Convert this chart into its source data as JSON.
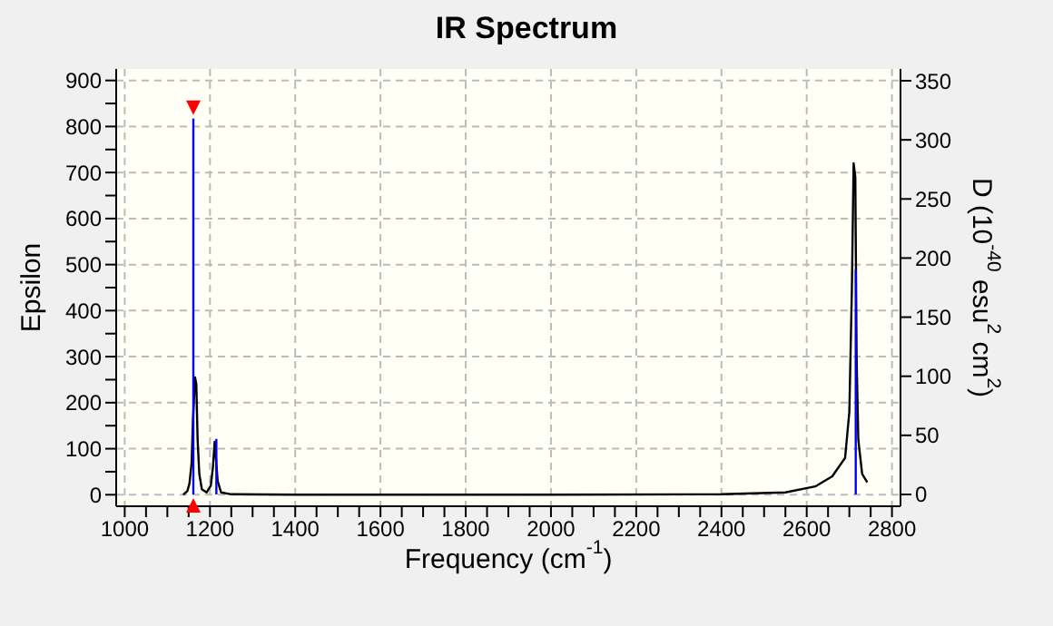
{
  "chart_data": {
    "type": "line",
    "title": "IR Spectrum",
    "xlabel": "Frequency (cm$^{-1}$)",
    "ylabel": "Epsilon",
    "y2label": "D (10$^{-40}$ esu$^{2}$ cm$^{2}$)",
    "xlim": [
      980,
      2820
    ],
    "xticks": [
      1000,
      {
        "value": 1050,
        "label": null
      },
      {
        "value": 1100,
        "label": null
      },
      {
        "value": 1150,
        "label": null
      },
      1200,
      {
        "value": 1250,
        "label": null
      },
      {
        "value": 1300,
        "label": null
      },
      {
        "value": 1350,
        "label": null
      },
      1400,
      {
        "value": 1450,
        "label": null
      },
      {
        "value": 1500,
        "label": null
      },
      {
        "value": 1550,
        "label": null
      },
      1600,
      {
        "value": 1650,
        "label": null
      },
      {
        "value": 1700,
        "label": null
      },
      {
        "value": 1750,
        "label": null
      },
      1800,
      {
        "value": 1850,
        "label": null
      },
      {
        "value": 1900,
        "label": null
      },
      {
        "value": 1950,
        "label": null
      },
      2000,
      {
        "value": 2050,
        "label": null
      },
      {
        "value": 2100,
        "label": null
      },
      {
        "value": 2150,
        "label": null
      },
      2200,
      {
        "value": 2250,
        "label": null
      },
      {
        "value": 2300,
        "label": null
      },
      {
        "value": 2350,
        "label": null
      },
      2400,
      {
        "value": 2450,
        "label": null
      },
      {
        "value": 2500,
        "label": null
      },
      {
        "value": 2550,
        "label": null
      },
      2600,
      {
        "value": 2650,
        "label": null
      },
      {
        "value": 2700,
        "label": null
      },
      {
        "value": 2750,
        "label": null
      },
      2800
    ],
    "ylim": [
      -25,
      925
    ],
    "yticks": [
      0,
      {
        "value": 50,
        "label": null
      },
      100,
      {
        "value": 150,
        "label": null
      },
      200,
      {
        "value": 250,
        "label": null
      },
      300,
      {
        "value": 350,
        "label": null
      },
      400,
      {
        "value": 450,
        "label": null
      },
      500,
      {
        "value": 550,
        "label": null
      },
      600,
      {
        "value": 650,
        "label": null
      },
      700,
      {
        "value": 750,
        "label": null
      },
      800,
      {
        "value": 850,
        "label": null
      },
      900
    ],
    "y2lim": [
      -10,
      360
    ],
    "y2ticks": [
      0,
      50,
      100,
      150,
      200,
      250,
      300,
      350
    ],
    "grid": true,
    "series": [
      {
        "color": "#000000",
        "x": [
          1137,
          1147,
          1152,
          1157,
          1160,
          1165,
          1168,
          1171,
          1175,
          1181,
          1192,
          1202,
          1207,
          1211,
          1214,
          1218,
          1226,
          1250,
          1400,
          1900,
          2000,
          2400,
          2550,
          2620,
          2660,
          2690,
          2700,
          2706,
          2710,
          2714,
          2717,
          2721,
          2730,
          2742
        ],
        "values": [
          0,
          8,
          25,
          70,
          160,
          255,
          240,
          120,
          45,
          12,
          5,
          20,
          60,
          115,
          80,
          30,
          5,
          1,
          0,
          0,
          0,
          1,
          5,
          18,
          40,
          80,
          180,
          450,
          720,
          690,
          300,
          120,
          45,
          27
        ]
      },
      {
        "type": "bar",
        "axis": "y2",
        "color": "#0000ff",
        "x": [
          1161,
          1215,
          2715
        ],
        "values": [
          318,
          47,
          190
        ]
      }
    ]
  }
}
